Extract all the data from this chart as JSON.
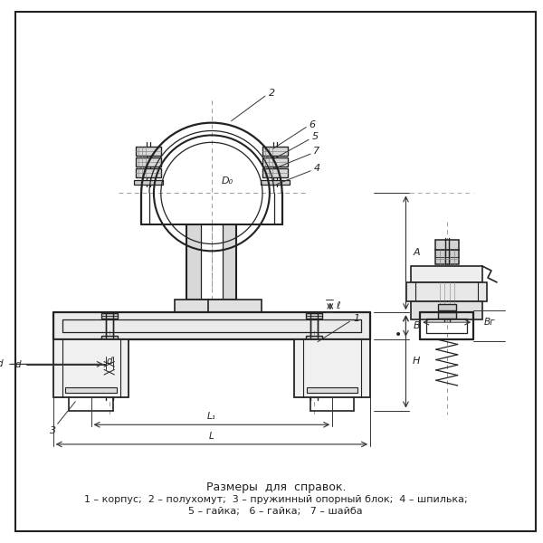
{
  "background_color": "#ffffff",
  "line_color": "#222222",
  "dim_color": "#333333",
  "caption_title": "Размеры  для  справок.",
  "caption_line1": "1 – корпус;  2 – полухомут;  3 – пружинный опорный блок;  4 – шпилька;",
  "caption_line2": "5 – гайка;   6 – гайка;   7 – шайба"
}
